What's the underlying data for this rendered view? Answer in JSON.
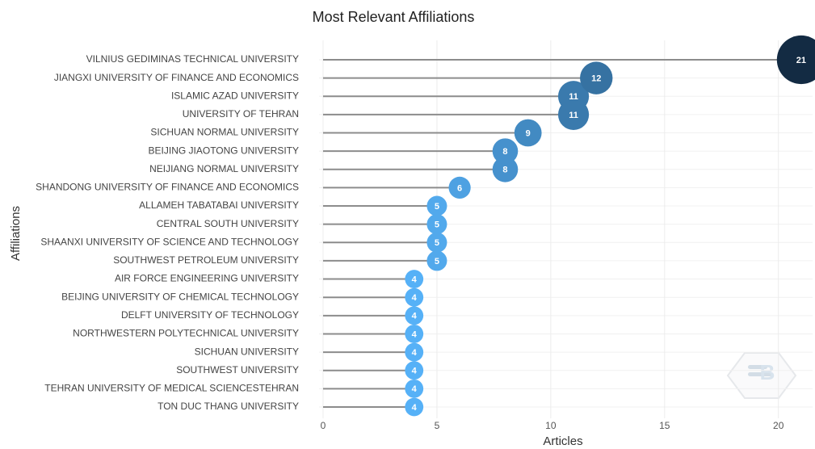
{
  "chart_data": {
    "type": "lollipop",
    "title": "Most Relevant Affiliations",
    "x_label": "Articles",
    "y_label": "Affiliations",
    "categories": [
      "VILNIUS GEDIMINAS TECHNICAL UNIVERSITY",
      "JIANGXI UNIVERSITY OF FINANCE AND ECONOMICS",
      "ISLAMIC AZAD UNIVERSITY",
      "UNIVERSITY OF TEHRAN",
      "SICHUAN NORMAL UNIVERSITY",
      "BEIJING JIAOTONG UNIVERSITY",
      "NEIJIANG NORMAL UNIVERSITY",
      "SHANDONG UNIVERSITY OF FINANCE AND ECONOMICS",
      "ALLAMEH TABATABAI UNIVERSITY",
      "CENTRAL SOUTH UNIVERSITY",
      "SHAANXI UNIVERSITY OF SCIENCE AND TECHNOLOGY",
      "SOUTHWEST PETROLEUM UNIVERSITY",
      "AIR FORCE ENGINEERING UNIVERSITY",
      "BEIJING UNIVERSITY OF CHEMICAL TECHNOLOGY",
      "DELFT UNIVERSITY OF TECHNOLOGY",
      "NORTHWESTERN POLYTECHNICAL UNIVERSITY",
      "SICHUAN UNIVERSITY",
      "SOUTHWEST UNIVERSITY",
      "TEHRAN UNIVERSITY OF MEDICAL SCIENCESTEHRAN",
      "TON DUC THANG UNIVERSITY"
    ],
    "values": [
      21,
      12,
      11,
      11,
      9,
      8,
      8,
      6,
      5,
      5,
      5,
      5,
      4,
      4,
      4,
      4,
      4,
      4,
      4,
      4
    ],
    "xlim": [
      0,
      21.5
    ],
    "xticks": [
      0,
      5,
      10,
      15,
      20
    ],
    "grid": true,
    "color_scale": [
      "#56b1f7",
      "#132b43"
    ],
    "stem_color": "#8c8c8c"
  }
}
